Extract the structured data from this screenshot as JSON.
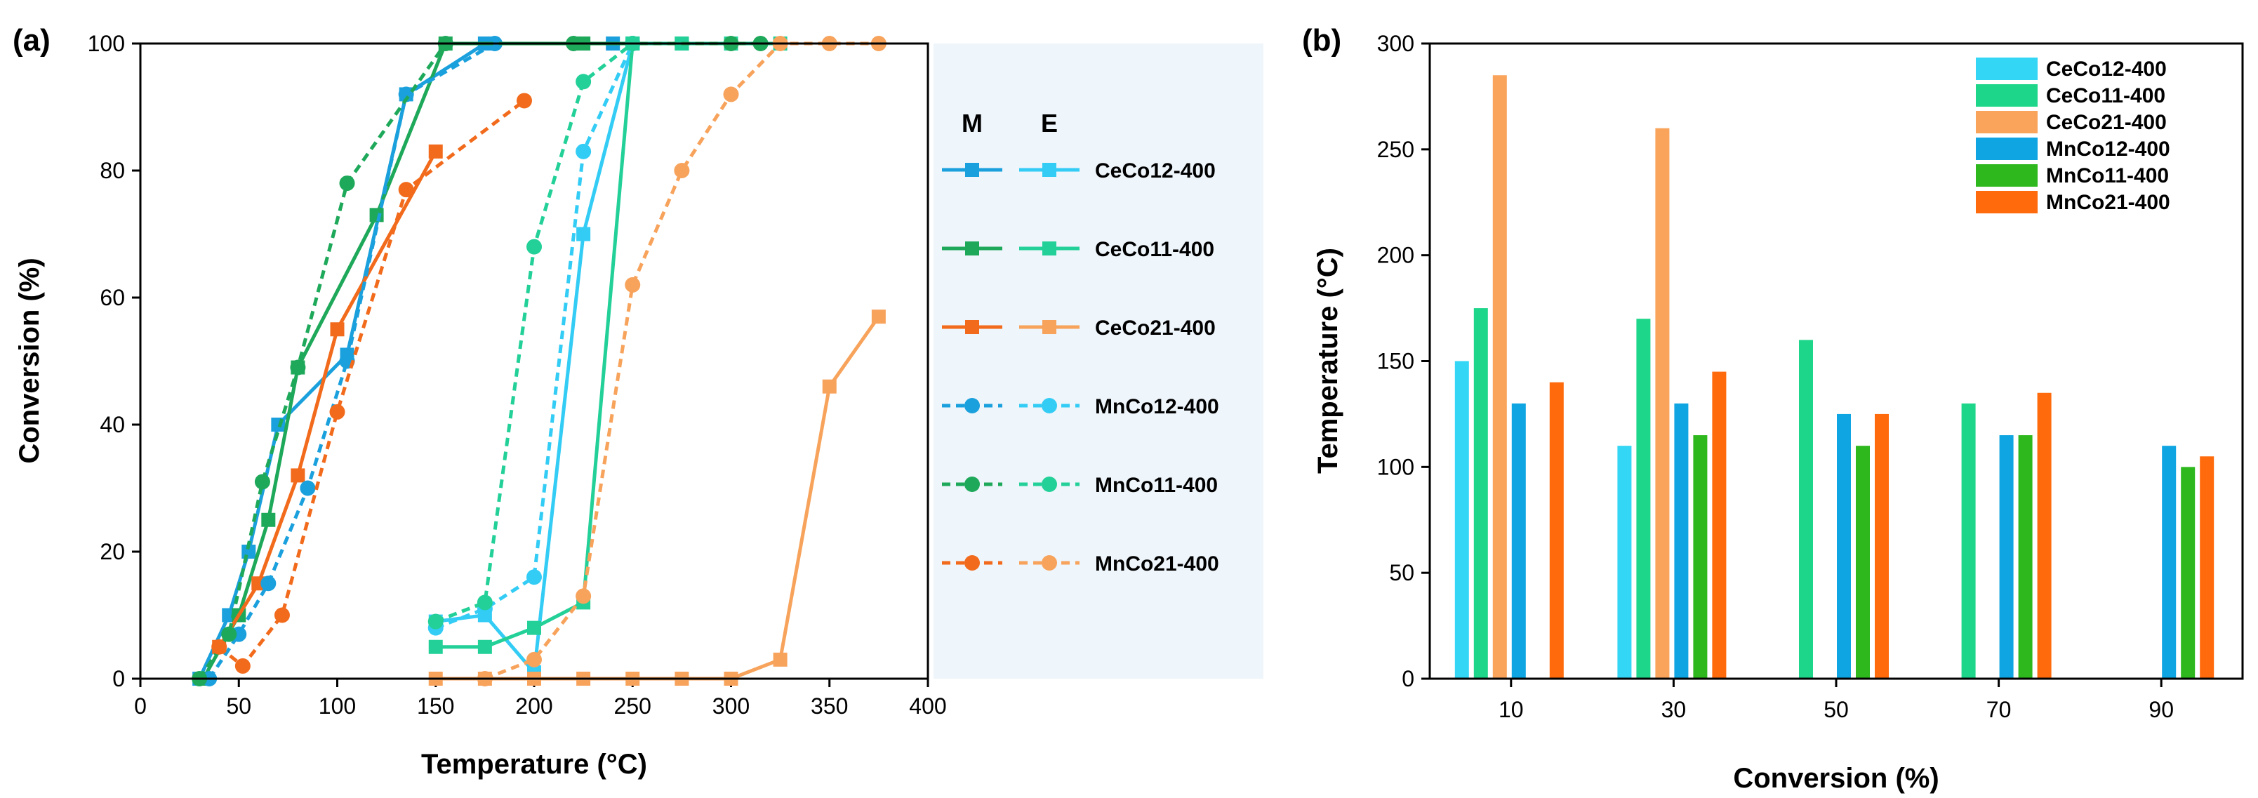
{
  "chart_data": [
    {
      "panel": "(a)",
      "type": "line",
      "xlabel": "Temperature (°C)",
      "ylabel": "Conversion (%)",
      "xlim": [
        0,
        400
      ],
      "ylim": [
        0,
        100
      ],
      "xticks": [
        0,
        50,
        100,
        150,
        200,
        250,
        300,
        350,
        400
      ],
      "yticks": [
        0,
        20,
        40,
        60,
        80,
        100
      ],
      "legend": {
        "position": "right",
        "columns": [
          "M",
          "E"
        ],
        "entries": [
          "CeCo12-400",
          "CeCo11-400",
          "CeCo21-400",
          "MnCo12-400",
          "MnCo11-400",
          "MnCo21-400"
        ]
      },
      "series": [
        {
          "name": "CeCo12-400 (M)",
          "color": "#1aa0dc",
          "dash": "solid",
          "marker": "square",
          "x": [
            30,
            45,
            55,
            70,
            105,
            135,
            175,
            240
          ],
          "y": [
            0,
            10,
            20,
            40,
            51,
            92,
            100,
            100
          ]
        },
        {
          "name": "CeCo11-400 (M)",
          "color": "#1ea85a",
          "dash": "solid",
          "marker": "square",
          "x": [
            32,
            50,
            65,
            80,
            120,
            155,
            225,
            250,
            275
          ],
          "y": [
            0,
            10,
            25,
            49,
            73,
            100,
            100,
            100,
            100
          ]
        },
        {
          "name": "CeCo21-400 (M)",
          "color": "#f26a1b",
          "dash": "solid",
          "marker": "square",
          "x": [
            40,
            60,
            80,
            100,
            150
          ],
          "y": [
            5,
            15,
            32,
            55,
            83
          ]
        },
        {
          "name": "CeCo12-400 (E)",
          "color": "#33ccf5",
          "dash": "solid",
          "marker": "square",
          "x": [
            150,
            175,
            200,
            225,
            250
          ],
          "y": [
            9,
            10,
            1,
            70,
            100
          ]
        },
        {
          "name": "CeCo11-400 (E)",
          "color": "#22d098",
          "dash": "solid",
          "marker": "square",
          "x": [
            150,
            175,
            200,
            225,
            250,
            275,
            300,
            325
          ],
          "y": [
            5,
            5,
            8,
            12,
            100,
            100,
            100,
            100
          ]
        },
        {
          "name": "CeCo21-400 (E)",
          "color": "#f7a35c",
          "dash": "solid",
          "marker": "square",
          "x": [
            150,
            175,
            200,
            225,
            250,
            275,
            300,
            325,
            350,
            375
          ],
          "y": [
            0,
            0,
            0,
            0,
            0,
            0,
            0,
            3,
            46,
            57
          ]
        },
        {
          "name": "MnCo12-400 (M)",
          "color": "#1aa0dc",
          "dash": "dashed",
          "marker": "circle",
          "x": [
            35,
            50,
            65,
            85,
            105,
            135,
            180
          ],
          "y": [
            0,
            7,
            15,
            30,
            50,
            92,
            100
          ]
        },
        {
          "name": "MnCo11-400 (M)",
          "color": "#1ea85a",
          "dash": "dashed",
          "marker": "circle",
          "x": [
            30,
            45,
            62,
            80,
            105,
            155,
            220,
            250,
            300,
            315
          ],
          "y": [
            0,
            7,
            31,
            49,
            78,
            100,
            100,
            100,
            100,
            100
          ]
        },
        {
          "name": "MnCo21-400 (M)",
          "color": "#f26a1b",
          "dash": "dashed",
          "marker": "circle",
          "x": [
            40,
            52,
            72,
            100,
            135,
            195
          ],
          "y": [
            5,
            2,
            10,
            42,
            77,
            91
          ]
        },
        {
          "name": "MnCo12-400 (E)",
          "color": "#33ccf5",
          "dash": "dashed",
          "marker": "circle",
          "x": [
            150,
            175,
            200,
            225,
            250
          ],
          "y": [
            8,
            11,
            16,
            83,
            100
          ]
        },
        {
          "name": "MnCo11-400 (E)",
          "color": "#22d098",
          "dash": "dashed",
          "marker": "circle",
          "x": [
            150,
            175,
            200,
            225,
            250
          ],
          "y": [
            9,
            12,
            68,
            94,
            100
          ]
        },
        {
          "name": "MnCo21-400 (E)",
          "color": "#f7a35c",
          "dash": "dashed",
          "marker": "circle",
          "x": [
            175,
            200,
            225,
            250,
            275,
            300,
            325,
            350,
            375
          ],
          "y": [
            0,
            3,
            13,
            62,
            80,
            92,
            100,
            100,
            100
          ]
        }
      ]
    },
    {
      "panel": "(b)",
      "type": "bar",
      "xlabel": "Conversion (%)",
      "ylabel": "Temperature (°C)",
      "categories": [
        "10",
        "30",
        "50",
        "70",
        "90"
      ],
      "ylim": [
        0,
        300
      ],
      "yticks": [
        0,
        50,
        100,
        150,
        200,
        250,
        300
      ],
      "legend": {
        "position": "top-right"
      },
      "series": [
        {
          "name": "CeCo12-400",
          "color": "#33d6f5",
          "values": [
            150,
            110,
            null,
            null,
            null
          ]
        },
        {
          "name": "CeCo11-400",
          "color": "#1ed68a",
          "values": [
            175,
            170,
            160,
            130,
            null
          ]
        },
        {
          "name": "CeCo21-400",
          "color": "#f9a45a",
          "values": [
            285,
            260,
            null,
            null,
            null
          ]
        },
        {
          "name": "MnCo12-400",
          "color": "#0ea5e2",
          "values": [
            130,
            130,
            125,
            115,
            110
          ]
        },
        {
          "name": "MnCo11-400",
          "color": "#2eb81e",
          "values": [
            null,
            115,
            110,
            115,
            100
          ]
        },
        {
          "name": "MnCo21-400",
          "color": "#ff6a0c",
          "values": [
            140,
            145,
            125,
            135,
            105
          ]
        }
      ]
    }
  ]
}
